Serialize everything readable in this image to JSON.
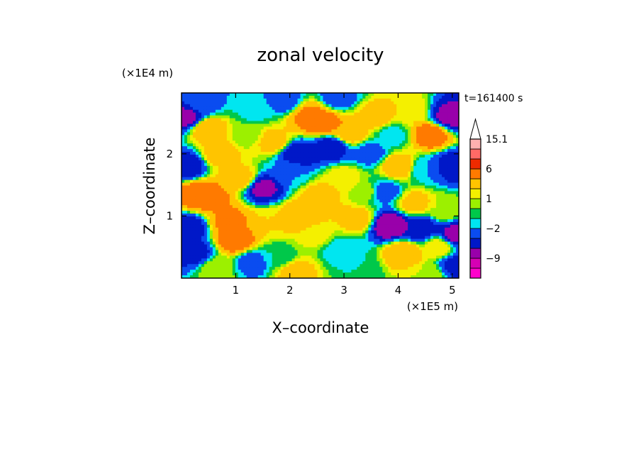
{
  "chart_data": {
    "type": "heatmap",
    "title": "zonal velocity",
    "xlabel": "X–coordinate",
    "ylabel": "Z–coordinate",
    "x_unit": "(×1E5 m)",
    "y_unit": "(×1E4 m)",
    "time_label": "t=161400 s",
    "xlim": [
      0,
      5.12
    ],
    "ylim": [
      0,
      2.98
    ],
    "x_ticks": [
      1,
      2,
      3,
      4,
      5
    ],
    "y_ticks": [
      1,
      2
    ],
    "x_tick_labels": [
      "1",
      "2",
      "3",
      "4",
      "5"
    ],
    "y_tick_labels": [
      "1",
      "2"
    ],
    "colorbar": {
      "levels": [
        -15.1,
        -12,
        -9,
        -6,
        -4,
        -2,
        -1,
        0,
        1,
        2,
        4,
        6,
        9,
        12,
        15.1
      ],
      "colors": [
        "#ff00cc",
        "#d600b4",
        "#9900aa",
        "#0018c8",
        "#0a4cf0",
        "#00e6f0",
        "#00c84a",
        "#9cf000",
        "#f4f000",
        "#ffc400",
        "#ff7a00",
        "#ee2a00",
        "#ff6a66",
        "#ffb0b0"
      ],
      "tick_labels": [
        {
          "value": 15.1,
          "label": "15.1"
        },
        {
          "value": 6,
          "label": "6"
        },
        {
          "value": 1,
          "label": "1"
        },
        {
          "value": -2,
          "label": "−2"
        },
        {
          "value": -9,
          "label": "−9"
        }
      ],
      "extend_max": true
    },
    "grid": false,
    "blobs": [
      {
        "x": 0.1,
        "z": 2.6,
        "v": -7
      },
      {
        "x": 0.1,
        "z": 1.8,
        "v": -6
      },
      {
        "x": 0.12,
        "z": 0.8,
        "v": -6
      },
      {
        "x": 0.25,
        "z": 0.4,
        "v": -5
      },
      {
        "x": 0.35,
        "z": 2.8,
        "v": -3
      },
      {
        "x": 0.5,
        "z": 2.4,
        "v": 4
      },
      {
        "x": 0.55,
        "z": 1.3,
        "v": 5
      },
      {
        "x": 0.7,
        "z": 2.0,
        "v": 3
      },
      {
        "x": 0.9,
        "z": 0.9,
        "v": 5
      },
      {
        "x": 1.0,
        "z": 0.6,
        "v": 6
      },
      {
        "x": 1.1,
        "z": 1.6,
        "v": 3
      },
      {
        "x": 1.2,
        "z": 2.3,
        "v": 0.5
      },
      {
        "x": 1.3,
        "z": 0.25,
        "v": -3
      },
      {
        "x": 1.35,
        "z": 2.7,
        "v": -1.5
      },
      {
        "x": 1.5,
        "z": 1.45,
        "v": -7
      },
      {
        "x": 1.6,
        "z": 0.9,
        "v": 2
      },
      {
        "x": 1.7,
        "z": 2.2,
        "v": 3
      },
      {
        "x": 1.8,
        "z": 0.35,
        "v": -1
      },
      {
        "x": 1.9,
        "z": 2.85,
        "v": -3
      },
      {
        "x": 2.0,
        "z": 1.7,
        "v": -2
      },
      {
        "x": 2.15,
        "z": 2.0,
        "v": -6
      },
      {
        "x": 2.2,
        "z": 1.0,
        "v": 4
      },
      {
        "x": 2.35,
        "z": 2.6,
        "v": 5
      },
      {
        "x": 2.5,
        "z": 0.7,
        "v": 1.5
      },
      {
        "x": 2.55,
        "z": 1.3,
        "v": 3
      },
      {
        "x": 2.6,
        "z": 2.5,
        "v": 6
      },
      {
        "x": 2.75,
        "z": 2.1,
        "v": -6
      },
      {
        "x": 2.9,
        "z": 2.9,
        "v": -3
      },
      {
        "x": 2.95,
        "z": 0.45,
        "v": -2
      },
      {
        "x": 3.0,
        "z": 1.6,
        "v": 2
      },
      {
        "x": 3.1,
        "z": 2.35,
        "v": 4
      },
      {
        "x": 3.25,
        "z": 0.95,
        "v": 3
      },
      {
        "x": 3.4,
        "z": 1.4,
        "v": 0.5
      },
      {
        "x": 3.5,
        "z": 2.0,
        "v": -3
      },
      {
        "x": 3.6,
        "z": 2.6,
        "v": 3
      },
      {
        "x": 3.75,
        "z": 1.4,
        "v": -3
      },
      {
        "x": 3.85,
        "z": 0.85,
        "v": -9
      },
      {
        "x": 3.9,
        "z": 2.3,
        "v": -1.5
      },
      {
        "x": 4.0,
        "z": 1.8,
        "v": 4
      },
      {
        "x": 4.1,
        "z": 0.4,
        "v": 4
      },
      {
        "x": 4.2,
        "z": 2.7,
        "v": 2
      },
      {
        "x": 4.3,
        "z": 1.2,
        "v": 3
      },
      {
        "x": 4.4,
        "z": 0.8,
        "v": -6
      },
      {
        "x": 4.5,
        "z": 1.75,
        "v": -2
      },
      {
        "x": 4.6,
        "z": 2.3,
        "v": 6
      },
      {
        "x": 4.75,
        "z": 0.5,
        "v": 2
      },
      {
        "x": 4.85,
        "z": 1.1,
        "v": 1
      },
      {
        "x": 4.95,
        "z": 2.6,
        "v": -7
      },
      {
        "x": 5.0,
        "z": 1.8,
        "v": -6
      },
      {
        "x": 5.05,
        "z": 0.7,
        "v": -7
      },
      {
        "x": 5.08,
        "z": 0.2,
        "v": -5
      },
      {
        "x": 0.3,
        "z": 1.35,
        "v": 6
      },
      {
        "x": 0.65,
        "z": 0.15,
        "v": 1
      },
      {
        "x": 2.1,
        "z": 0.1,
        "v": 3
      },
      {
        "x": 3.3,
        "z": 0.15,
        "v": -1
      },
      {
        "x": 4.55,
        "z": 0.05,
        "v": 1
      }
    ]
  }
}
